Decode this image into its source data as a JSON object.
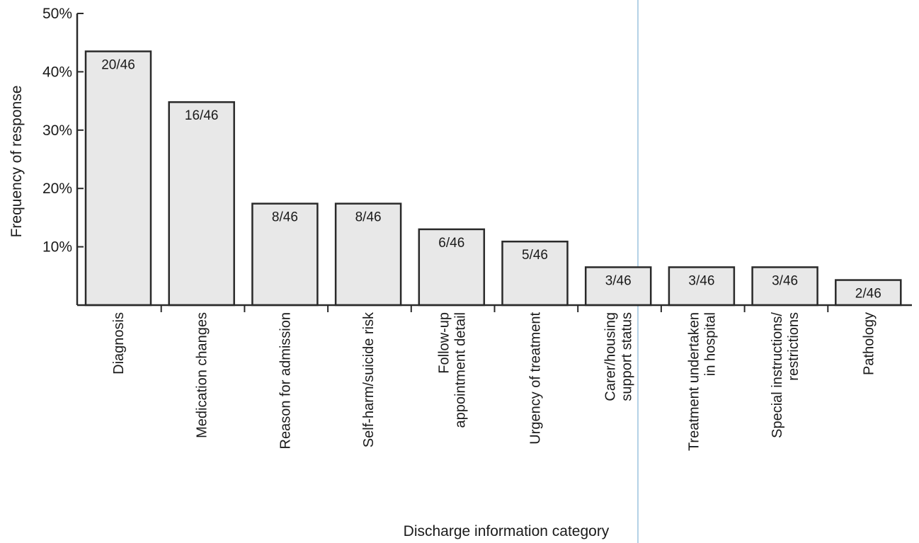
{
  "chart_data": {
    "type": "bar",
    "xlabel": "Discharge information category",
    "ylabel": "Frequency of response",
    "ylim": [
      0,
      50
    ],
    "yticks": [
      {
        "value": 10,
        "label": "10%"
      },
      {
        "value": 20,
        "label": "20%"
      },
      {
        "value": 30,
        "label": "30%"
      },
      {
        "value": 40,
        "label": "40%"
      },
      {
        "value": 50,
        "label": "50%"
      }
    ],
    "categories": [
      [
        "Diagnosis"
      ],
      [
        "Medication changes"
      ],
      [
        "Reason for admission"
      ],
      [
        "Self-harm/suicide risk"
      ],
      [
        "Follow-up",
        "appointment detail"
      ],
      [
        "Urgency of treatment"
      ],
      [
        "Carer/housing",
        "support status"
      ],
      [
        "Treatment undertaken",
        "in hospital"
      ],
      [
        "Special instructions/",
        "restrictions"
      ],
      [
        "Pathology"
      ]
    ],
    "values": [
      43.5,
      34.8,
      17.4,
      17.4,
      13.0,
      10.9,
      6.5,
      6.5,
      6.5,
      4.3
    ],
    "data_labels": [
      "20/46",
      "16/46",
      "8/46",
      "8/46",
      "6/46",
      "5/46",
      "3/46",
      "3/46",
      "3/46",
      "2/46"
    ],
    "grid": false,
    "legend": "none",
    "colors": {
      "bar_fill": "#e8e8e8",
      "bar_stroke": "#2a2a2a",
      "divider": "#9cc3dd"
    }
  }
}
